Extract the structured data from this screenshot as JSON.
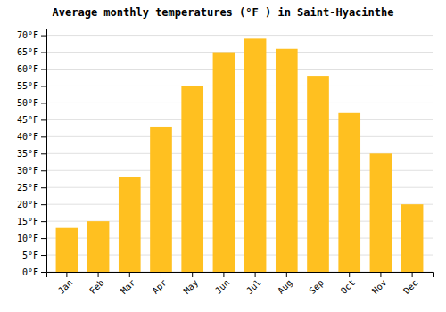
{
  "chart_data": {
    "type": "bar",
    "title": "Average monthly temperatures (°F ) in Saint-Hyacinthe",
    "categories": [
      "Jan",
      "Feb",
      "Mar",
      "Apr",
      "May",
      "Jun",
      "Jul",
      "Aug",
      "Sep",
      "Oct",
      "Nov",
      "Dec"
    ],
    "values": [
      13,
      15,
      28,
      43,
      55,
      65,
      69,
      66,
      58,
      47,
      35,
      20
    ],
    "color": "#FFC020",
    "ylim": [
      0,
      72
    ],
    "yticks": [
      {
        "value": 0,
        "label": "0°F"
      },
      {
        "value": 5,
        "label": "5°F"
      },
      {
        "value": 10,
        "label": "10°F"
      },
      {
        "value": 15,
        "label": "15°F"
      },
      {
        "value": 20,
        "label": "20°F"
      },
      {
        "value": 25,
        "label": "25°F"
      },
      {
        "value": 30,
        "label": "30°F"
      },
      {
        "value": 35,
        "label": "35°F"
      },
      {
        "value": 40,
        "label": "40°F"
      },
      {
        "value": 45,
        "label": "45°F"
      },
      {
        "value": 50,
        "label": "50°F"
      },
      {
        "value": 55,
        "label": "55°F"
      },
      {
        "value": 60,
        "label": "60°F"
      },
      {
        "value": 65,
        "label": "65°F"
      },
      {
        "value": 70,
        "label": "70°F"
      }
    ],
    "grid": true
  }
}
